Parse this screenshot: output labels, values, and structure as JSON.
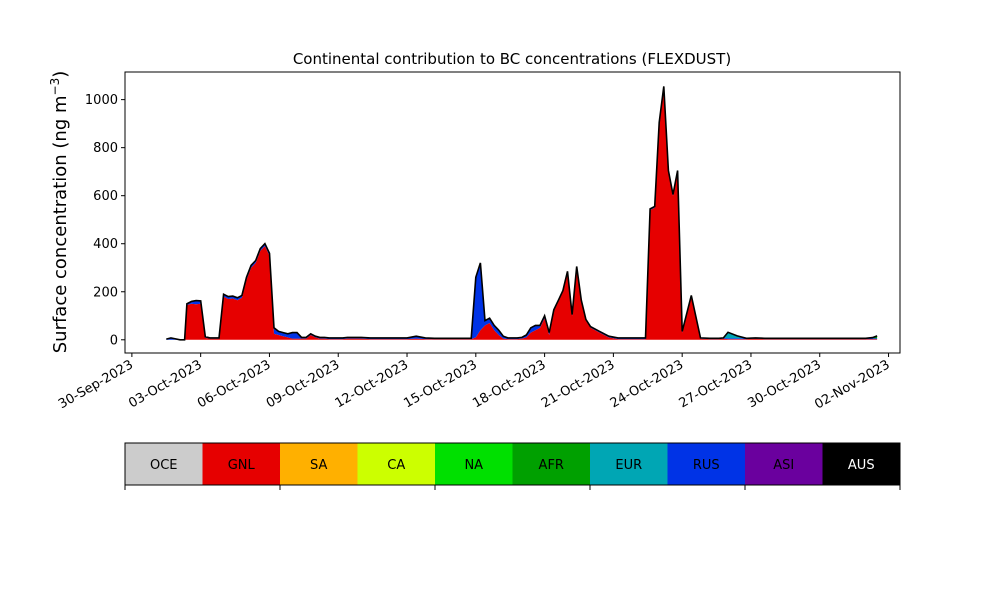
{
  "chart_data": {
    "type": "area",
    "title": "Continental contribution to BC concentrations (FLEXDUST)",
    "ylabel": "Surface concentration (ng m",
    "ylabel_sup": "−3",
    "ylabel_close": ")",
    "xlabel": "",
    "ylim": [
      -55,
      1115
    ],
    "yticks": [
      0,
      200,
      400,
      600,
      800,
      1000
    ],
    "x_unit": "days after 30-Sep-2023",
    "xlim": [
      -0.3,
      33.5
    ],
    "xticks": [
      {
        "x": 0,
        "label": "30-Sep-2023"
      },
      {
        "x": 3,
        "label": "03-Oct-2023"
      },
      {
        "x": 6,
        "label": "06-Oct-2023"
      },
      {
        "x": 9,
        "label": "09-Oct-2023"
      },
      {
        "x": 12,
        "label": "12-Oct-2023"
      },
      {
        "x": 15,
        "label": "15-Oct-2023"
      },
      {
        "x": 18,
        "label": "18-Oct-2023"
      },
      {
        "x": 21,
        "label": "21-Oct-2023"
      },
      {
        "x": 24,
        "label": "24-Oct-2023"
      },
      {
        "x": 27,
        "label": "27-Oct-2023"
      },
      {
        "x": 30,
        "label": "30-Oct-2023"
      },
      {
        "x": 33,
        "label": "02-Nov-2023"
      }
    ],
    "x": [
      1.5,
      1.7,
      2.1,
      2.3,
      2.4,
      2.6,
      2.8,
      3.0,
      3.2,
      3.4,
      3.6,
      3.8,
      4.0,
      4.2,
      4.4,
      4.6,
      4.8,
      5.0,
      5.2,
      5.4,
      5.6,
      5.8,
      6.0,
      6.2,
      6.4,
      6.6,
      6.8,
      7.0,
      7.2,
      7.4,
      7.6,
      7.8,
      8.0,
      8.2,
      8.4,
      8.6,
      8.8,
      9.0,
      9.2,
      9.4,
      9.6,
      9.8,
      10.0,
      10.4,
      10.8,
      11.2,
      11.6,
      12.0,
      12.4,
      12.8,
      13.2,
      13.6,
      14.0,
      14.4,
      14.6,
      14.8,
      15.0,
      15.2,
      15.4,
      15.6,
      15.8,
      16.0,
      16.2,
      16.4,
      16.6,
      16.8,
      17.0,
      17.2,
      17.4,
      17.6,
      17.8,
      18.0,
      18.2,
      18.4,
      18.6,
      18.8,
      19.0,
      19.2,
      19.4,
      19.6,
      19.8,
      20.0,
      20.4,
      20.8,
      21.2,
      21.6,
      21.9,
      22.1,
      22.3,
      22.4,
      22.6,
      22.8,
      23.0,
      23.2,
      23.4,
      23.6,
      23.8,
      24.0,
      24.4,
      24.8,
      25.2,
      25.6,
      25.8,
      26.0,
      26.4,
      26.8,
      27.2,
      27.6,
      28.0,
      28.5,
      29.0,
      29.5,
      30.0,
      30.5,
      31.0,
      31.5,
      32.0,
      32.3,
      32.5
    ],
    "series": [
      {
        "name": "GNL",
        "color": "#e60000",
        "values": [
          0,
          0,
          0,
          0,
          145,
          150,
          148,
          150,
          8,
          5,
          5,
          5,
          180,
          170,
          172,
          165,
          175,
          250,
          300,
          320,
          370,
          390,
          350,
          25,
          20,
          15,
          10,
          5,
          5,
          5,
          5,
          20,
          10,
          5,
          5,
          3,
          3,
          3,
          3,
          5,
          5,
          5,
          5,
          3,
          3,
          3,
          3,
          3,
          5,
          3,
          3,
          3,
          3,
          3,
          3,
          3,
          10,
          40,
          60,
          70,
          40,
          20,
          5,
          3,
          3,
          3,
          5,
          10,
          30,
          40,
          50,
          90,
          20,
          120,
          160,
          200,
          280,
          100,
          300,
          160,
          80,
          50,
          30,
          10,
          3,
          3,
          3,
          3,
          3,
          3,
          540,
          550,
          900,
          1050,
          700,
          600,
          700,
          30,
          180,
          5,
          3,
          3,
          5,
          3,
          3,
          3,
          5,
          3,
          3,
          3,
          3,
          3,
          3,
          3,
          3,
          3,
          3,
          3,
          3
        ]
      },
      {
        "name": "RUS",
        "color": "#0033e6",
        "values": [
          3,
          8,
          0,
          0,
          5,
          10,
          15,
          12,
          5,
          3,
          3,
          3,
          10,
          10,
          10,
          10,
          10,
          10,
          10,
          10,
          10,
          10,
          10,
          25,
          15,
          15,
          15,
          25,
          25,
          5,
          5,
          5,
          5,
          5,
          5,
          5,
          5,
          5,
          5,
          5,
          5,
          5,
          5,
          5,
          5,
          5,
          5,
          5,
          10,
          5,
          3,
          3,
          3,
          3,
          3,
          3,
          250,
          280,
          20,
          20,
          20,
          20,
          10,
          5,
          5,
          5,
          5,
          10,
          20,
          20,
          10,
          10,
          10,
          5,
          5,
          5,
          5,
          5,
          5,
          5,
          5,
          5,
          5,
          5,
          5,
          5,
          5,
          5,
          5,
          5,
          5,
          5,
          5,
          5,
          5,
          5,
          5,
          5,
          5,
          3,
          3,
          3,
          3,
          3,
          3,
          3,
          3,
          3,
          3,
          3,
          3,
          3,
          3,
          3,
          3,
          3,
          3,
          3,
          3
        ]
      },
      {
        "name": "EUR",
        "color": "#00a6b4",
        "values": [
          0,
          0,
          0,
          0,
          0,
          0,
          0,
          0,
          0,
          0,
          0,
          0,
          0,
          0,
          0,
          0,
          0,
          0,
          0,
          0,
          0,
          0,
          0,
          0,
          0,
          0,
          0,
          0,
          0,
          0,
          0,
          0,
          0,
          0,
          0,
          0,
          0,
          0,
          0,
          0,
          0,
          0,
          0,
          0,
          0,
          0,
          0,
          0,
          0,
          0,
          0,
          0,
          0,
          0,
          0,
          0,
          0,
          0,
          0,
          0,
          0,
          0,
          0,
          0,
          0,
          0,
          0,
          0,
          0,
          0,
          0,
          0,
          0,
          0,
          0,
          0,
          0,
          0,
          0,
          0,
          0,
          0,
          0,
          0,
          0,
          0,
          0,
          0,
          0,
          0,
          0,
          0,
          0,
          0,
          0,
          0,
          0,
          0,
          0,
          0,
          0,
          0,
          0,
          25,
          10,
          0,
          0,
          0,
          0,
          0,
          0,
          0,
          0,
          0,
          0,
          0,
          0,
          0,
          0
        ]
      },
      {
        "name": "AFR",
        "color": "#00a000",
        "values": [
          0,
          0,
          0,
          0,
          0,
          0,
          0,
          0,
          0,
          0,
          0,
          0,
          0,
          0,
          0,
          0,
          0,
          0,
          0,
          0,
          0,
          0,
          0,
          0,
          0,
          0,
          0,
          0,
          0,
          0,
          0,
          0,
          0,
          0,
          0,
          0,
          0,
          0,
          0,
          0,
          0,
          0,
          0,
          0,
          0,
          0,
          0,
          0,
          0,
          0,
          0,
          0,
          0,
          0,
          0,
          0,
          0,
          0,
          0,
          0,
          0,
          0,
          0,
          0,
          0,
          0,
          0,
          0,
          0,
          0,
          0,
          0,
          0,
          0,
          0,
          0,
          0,
          0,
          0,
          0,
          0,
          0,
          0,
          0,
          0,
          0,
          0,
          0,
          0,
          0,
          0,
          0,
          0,
          0,
          0,
          0,
          0,
          0,
          0,
          0,
          0,
          0,
          0,
          0,
          0,
          0,
          0,
          0,
          0,
          0,
          0,
          0,
          0,
          0,
          0,
          0,
          0,
          3,
          10
        ]
      }
    ],
    "legend": [
      {
        "label": "OCE",
        "color": "#cccccc",
        "text_color": "#000000"
      },
      {
        "label": "GNL",
        "color": "#e60000",
        "text_color": "#000000"
      },
      {
        "label": "SA",
        "color": "#ffb000",
        "text_color": "#000000"
      },
      {
        "label": "CA",
        "color": "#ccff00",
        "text_color": "#000000"
      },
      {
        "label": "NA",
        "color": "#00e000",
        "text_color": "#000000"
      },
      {
        "label": "AFR",
        "color": "#00a000",
        "text_color": "#000000"
      },
      {
        "label": "EUR",
        "color": "#00a6b4",
        "text_color": "#000000"
      },
      {
        "label": "RUS",
        "color": "#0033e6",
        "text_color": "#000000"
      },
      {
        "label": "ASI",
        "color": "#6a009e",
        "text_color": "#000000"
      },
      {
        "label": "AUS",
        "color": "#000000",
        "text_color": "#ffffff"
      }
    ],
    "legend_placement": "bottom",
    "grid": false
  }
}
